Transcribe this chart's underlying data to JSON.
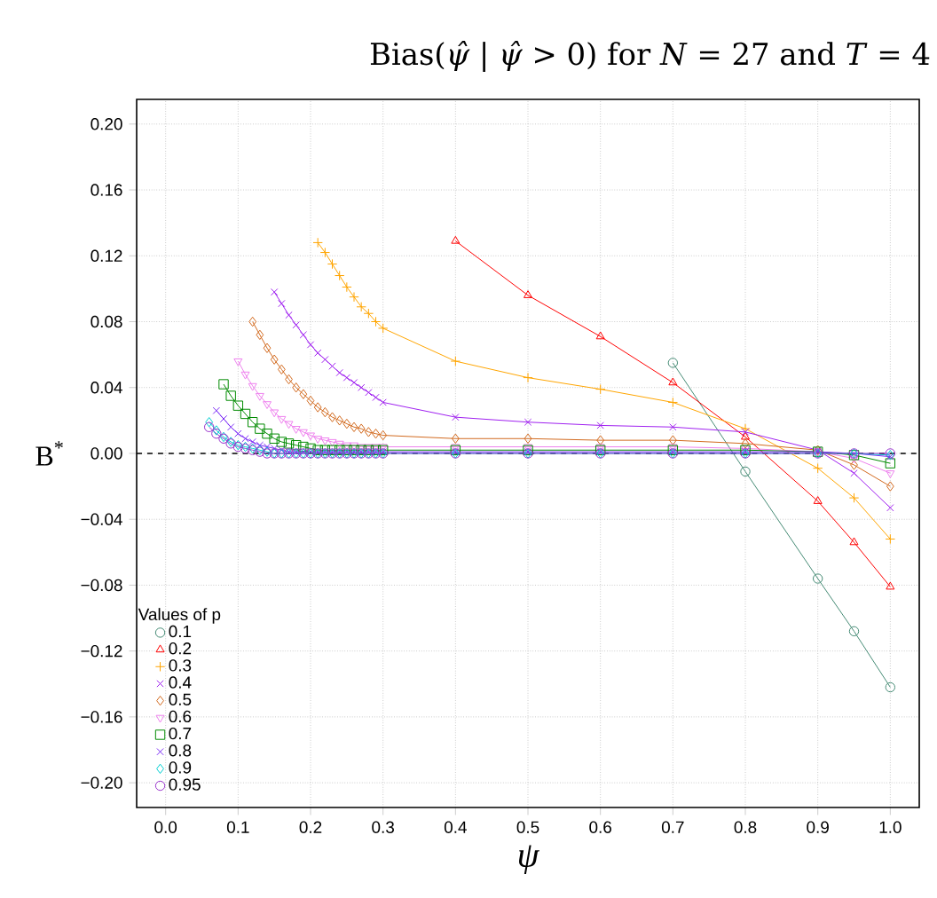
{
  "chart_data": {
    "type": "line",
    "title": "Bias(*ψ̂* | *ψ̂* > 0) for *N* = 27 and *T* = 4",
    "xlabel": "ψ",
    "ylabel": "B$^{*}$",
    "legend_title": "Values of p",
    "xlim": [
      -0.04,
      1.04
    ],
    "ylim": [
      -0.215,
      0.215
    ],
    "xticks": [
      {
        "value": 0,
        "label": "0.0"
      },
      {
        "value": 0.1,
        "label": "0.1"
      },
      {
        "value": 0.2,
        "label": "0.2"
      },
      {
        "value": 0.3,
        "label": "0.3"
      },
      {
        "value": 0.4,
        "label": "0.4"
      },
      {
        "value": 0.5,
        "label": "0.5"
      },
      {
        "value": 0.6,
        "label": "0.6"
      },
      {
        "value": 0.7,
        "label": "0.7"
      },
      {
        "value": 0.8,
        "label": "0.8"
      },
      {
        "value": 0.9,
        "label": "0.9"
      },
      {
        "value": 1,
        "label": "1.0"
      }
    ],
    "yticks": [
      {
        "value": -0.2,
        "label": "−0.20"
      },
      {
        "value": -0.16,
        "label": "−0.16"
      },
      {
        "value": -0.12,
        "label": "−0.12"
      },
      {
        "value": -0.08,
        "label": "−0.08"
      },
      {
        "value": -0.04,
        "label": "−0.04"
      },
      {
        "value": 0,
        "label": "0.00"
      },
      {
        "value": 0.04,
        "label": "0.04"
      },
      {
        "value": 0.08,
        "label": "0.08"
      },
      {
        "value": 0.12,
        "label": "0.12"
      },
      {
        "value": 0.16,
        "label": "0.16"
      },
      {
        "value": 0.2,
        "label": "0.20"
      }
    ],
    "grid": true,
    "legend": "bottom left",
    "ref_lines": [
      {
        "axis": "y",
        "value": 0,
        "color": "#000000",
        "line_style": "dashed"
      }
    ],
    "series": [
      {
        "name": "0.1",
        "color": "#458b74",
        "marker": "circle",
        "x": [
          0.7,
          0.8,
          0.9,
          0.95,
          1
        ],
        "values": [
          0.055,
          -0.011,
          -0.076,
          -0.108,
          -0.142
        ]
      },
      {
        "name": "0.2",
        "color": "#ff0000",
        "marker": "triangle",
        "x": [
          0.4,
          0.5,
          0.6,
          0.7,
          0.8,
          0.9,
          0.95,
          1
        ],
        "values": [
          0.129,
          0.096,
          0.071,
          0.043,
          0.01,
          -0.029,
          -0.054,
          -0.081
        ]
      },
      {
        "name": "0.3",
        "color": "#ffa500",
        "marker": "plus",
        "x": [
          0.21,
          0.22,
          0.23,
          0.24,
          0.25,
          0.26,
          0.27,
          0.28,
          0.29,
          0.3,
          0.4,
          0.5,
          0.6,
          0.7,
          0.8,
          0.9,
          0.95,
          1
        ],
        "values": [
          0.128,
          0.122,
          0.115,
          0.108,
          0.101,
          0.095,
          0.089,
          0.085,
          0.08,
          0.076,
          0.056,
          0.046,
          0.039,
          0.031,
          0.015,
          -0.009,
          -0.027,
          -0.052
        ]
      },
      {
        "name": "0.4",
        "color": "#a020f0",
        "marker": "cross",
        "x": [
          0.15,
          0.16,
          0.17,
          0.18,
          0.19,
          0.2,
          0.21,
          0.22,
          0.23,
          0.24,
          0.25,
          0.26,
          0.27,
          0.28,
          0.29,
          0.3,
          0.4,
          0.5,
          0.6,
          0.7,
          0.8,
          0.9,
          0.95,
          1
        ],
        "values": [
          0.098,
          0.091,
          0.084,
          0.078,
          0.072,
          0.066,
          0.061,
          0.057,
          0.053,
          0.049,
          0.046,
          0.043,
          0.04,
          0.037,
          0.034,
          0.031,
          0.022,
          0.019,
          0.017,
          0.016,
          0.013,
          0.002,
          -0.012,
          -0.033
        ]
      },
      {
        "name": "0.5",
        "color": "#d2691e",
        "marker": "diamond",
        "x": [
          0.12,
          0.13,
          0.14,
          0.15,
          0.16,
          0.17,
          0.18,
          0.19,
          0.2,
          0.21,
          0.22,
          0.23,
          0.24,
          0.25,
          0.26,
          0.27,
          0.28,
          0.29,
          0.3,
          0.4,
          0.5,
          0.6,
          0.7,
          0.8,
          0.9,
          0.95,
          1
        ],
        "values": [
          0.08,
          0.072,
          0.064,
          0.057,
          0.051,
          0.045,
          0.04,
          0.036,
          0.032,
          0.028,
          0.025,
          0.022,
          0.02,
          0.018,
          0.016,
          0.015,
          0.013,
          0.012,
          0.011,
          0.009,
          0.009,
          0.008,
          0.008,
          0.006,
          0.002,
          -0.007,
          -0.02
        ]
      },
      {
        "name": "0.6",
        "color": "#ee82ee",
        "marker": "triangle-down",
        "x": [
          0.1,
          0.11,
          0.12,
          0.13,
          0.14,
          0.15,
          0.16,
          0.17,
          0.18,
          0.19,
          0.2,
          0.21,
          0.22,
          0.23,
          0.24,
          0.25,
          0.26,
          0.27,
          0.28,
          0.29,
          0.3,
          0.4,
          0.5,
          0.6,
          0.7,
          0.8,
          0.9,
          0.95,
          1
        ],
        "values": [
          0.056,
          0.048,
          0.041,
          0.035,
          0.03,
          0.025,
          0.021,
          0.018,
          0.015,
          0.013,
          0.011,
          0.009,
          0.008,
          0.007,
          0.006,
          0.005,
          0.005,
          0.004,
          0.004,
          0.004,
          0.004,
          0.004,
          0.004,
          0.004,
          0.004,
          0.003,
          0.001,
          -0.003,
          -0.012
        ]
      },
      {
        "name": "0.7",
        "color": "#008b00",
        "marker": "square",
        "x": [
          0.08,
          0.09,
          0.1,
          0.11,
          0.12,
          0.13,
          0.14,
          0.15,
          0.16,
          0.17,
          0.18,
          0.19,
          0.2,
          0.21,
          0.22,
          0.23,
          0.24,
          0.25,
          0.26,
          0.27,
          0.28,
          0.29,
          0.3,
          0.4,
          0.5,
          0.6,
          0.7,
          0.8,
          0.9,
          0.95,
          1
        ],
        "values": [
          0.042,
          0.035,
          0.029,
          0.024,
          0.019,
          0.015,
          0.012,
          0.009,
          0.007,
          0.006,
          0.005,
          0.004,
          0.003,
          0.002,
          0.002,
          0.002,
          0.002,
          0.002,
          0.002,
          0.002,
          0.002,
          0.002,
          0.002,
          0.002,
          0.002,
          0.002,
          0.002,
          0.002,
          0.001,
          -0.001,
          -0.006
        ]
      },
      {
        "name": "0.8",
        "color": "#7b2cf5",
        "marker": "cross",
        "x": [
          0.07,
          0.08,
          0.09,
          0.1,
          0.11,
          0.12,
          0.13,
          0.14,
          0.15,
          0.16,
          0.17,
          0.18,
          0.19,
          0.2,
          0.21,
          0.22,
          0.23,
          0.24,
          0.25,
          0.26,
          0.27,
          0.28,
          0.29,
          0.3,
          0.4,
          0.5,
          0.6,
          0.7,
          0.8,
          0.9,
          0.95,
          1
        ],
        "values": [
          0.026,
          0.021,
          0.016,
          0.012,
          0.009,
          0.007,
          0.005,
          0.004,
          0.003,
          0.002,
          0.001,
          0.001,
          0.001,
          0.001,
          0.001,
          0.001,
          0.001,
          0.001,
          0.001,
          0.001,
          0.001,
          0.001,
          0.001,
          0.001,
          0.001,
          0.001,
          0.001,
          0.001,
          0.001,
          0.001,
          0.0,
          -0.002
        ]
      },
      {
        "name": "0.9",
        "color": "#00ced1",
        "marker": "diamond-plus",
        "x": [
          0.06,
          0.07,
          0.08,
          0.09,
          0.1,
          0.11,
          0.12,
          0.13,
          0.14,
          0.15,
          0.16,
          0.17,
          0.18,
          0.19,
          0.2,
          0.21,
          0.22,
          0.23,
          0.24,
          0.25,
          0.26,
          0.27,
          0.28,
          0.29,
          0.3,
          0.4,
          0.5,
          0.6,
          0.7,
          0.8,
          0.9,
          0.95,
          1
        ],
        "values": [
          0.019,
          0.014,
          0.01,
          0.007,
          0.005,
          0.004,
          0.003,
          0.002,
          0.001,
          0,
          0,
          0,
          0,
          0,
          0,
          0,
          0,
          0,
          0,
          0,
          0,
          0,
          0,
          0,
          0,
          0,
          0,
          0,
          0,
          0,
          0,
          0,
          -0.001
        ]
      },
      {
        "name": "0.95",
        "color": "#9932cc",
        "marker": "circle",
        "x": [
          0.06,
          0.07,
          0.08,
          0.09,
          0.1,
          0.11,
          0.12,
          0.13,
          0.14,
          0.15,
          0.16,
          0.17,
          0.18,
          0.19,
          0.2,
          0.21,
          0.22,
          0.23,
          0.24,
          0.25,
          0.26,
          0.27,
          0.28,
          0.29,
          0.3,
          0.4,
          0.5,
          0.6,
          0.7,
          0.8,
          0.9,
          0.95,
          1
        ],
        "values": [
          0.016,
          0.012,
          0.009,
          0.006,
          0.004,
          0.003,
          0.002,
          0.001,
          0,
          0,
          0,
          0,
          0,
          0,
          0,
          0,
          0,
          0,
          0,
          0,
          0,
          0,
          0,
          0,
          0,
          0,
          0,
          0,
          0,
          0,
          0,
          0,
          0
        ]
      }
    ]
  }
}
